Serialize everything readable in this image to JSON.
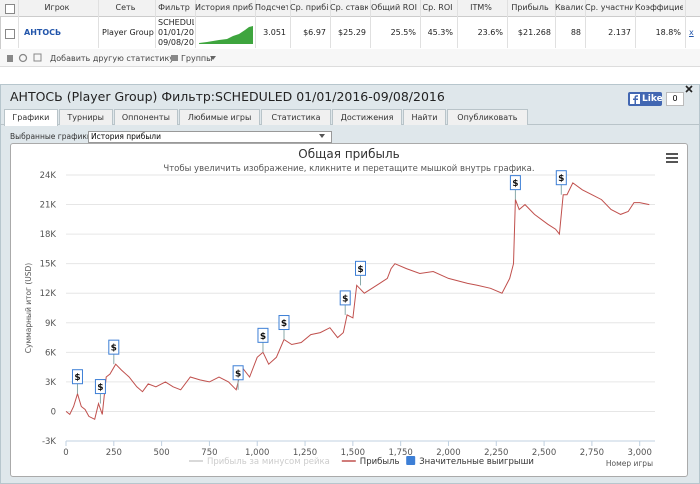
{
  "table": {
    "headers": [
      "Игрок",
      "Сеть",
      "Фильтр",
      "История прибы",
      "Подсчет",
      "Ср. прибі",
      "Ср. ставка",
      "Общий ROI",
      "Ср. ROI",
      "ITM%",
      "Прибыль",
      "Квалис",
      "Ср. участни",
      "Коэффицие"
    ],
    "row": {
      "player": "АНТОСЬ",
      "network": "Player Group",
      "filter": [
        "SCHEDUL",
        "01/01/20",
        "09/08/20"
      ],
      "stats": [
        "3.051",
        "$6.97",
        "$25.29",
        "25.5%",
        "45.3%",
        "23.6%",
        "$21.268",
        "88",
        "2.137",
        "18.8%"
      ],
      "remove": "x"
    },
    "actions": [
      "Добавить другую статистику",
      "Группы"
    ]
  },
  "panel": {
    "title": "АНТОСЬ (Player Group) Фильтр:SCHEDULED 01/01/2016-09/08/2016",
    "like": "Like",
    "like_count": "0",
    "tabs": [
      "Графики",
      "Турниры",
      "Оппоненты",
      "Любимые игры",
      "Статистика",
      "Достижения",
      "Найти",
      "Опубликовать"
    ],
    "selector_label": "Выбранные графики:",
    "selector_value": "История прибыли"
  },
  "chart_data": {
    "type": "line",
    "title": "Общая прибыль",
    "subtitle": "Чтобы увеличить изображение, кликните и перетащите мышкой внутрь графика.",
    "y_label": "Суммарный итог (USD)",
    "x_label": "Номер игры",
    "xlim": [
      0,
      3080
    ],
    "ylim": [
      -3000,
      24000
    ],
    "xticks": [
      0,
      250,
      500,
      750,
      {
        "value": 1000,
        "label": "1,000"
      },
      {
        "value": 1250,
        "label": "1,250"
      },
      {
        "value": 1500,
        "label": "1,500"
      },
      {
        "value": 1750,
        "label": "1,750"
      },
      {
        "value": 2000,
        "label": "2,000"
      },
      {
        "value": 2250,
        "label": "2,250"
      },
      {
        "value": 2500,
        "label": "2,500"
      },
      {
        "value": 2750,
        "label": "2,750"
      },
      {
        "value": 3000,
        "label": "3,000"
      }
    ],
    "yticks": [
      {
        "value": -3000,
        "label": "-3K"
      },
      0,
      {
        "value": 3000,
        "label": "3K"
      },
      {
        "value": 6000,
        "label": "6K"
      },
      {
        "value": 9000,
        "label": "9K"
      },
      {
        "value": 12000,
        "label": "12K"
      },
      {
        "value": 15000,
        "label": "15K"
      },
      {
        "value": 18000,
        "label": "18K"
      },
      {
        "value": 21000,
        "label": "21K"
      },
      {
        "value": 24000,
        "label": "24K"
      }
    ],
    "grid": true,
    "series": [
      {
        "name": "Прибыль за минусом рейка",
        "color": "#cccccc",
        "visible": false
      },
      {
        "name": "Прибыль",
        "color": "#c0504d",
        "visible": true,
        "x": [
          0,
          20,
          40,
          60,
          80,
          100,
          120,
          150,
          170,
          190,
          210,
          230,
          260,
          290,
          330,
          370,
          400,
          430,
          470,
          520,
          560,
          600,
          650,
          700,
          750,
          800,
          850,
          890,
          920,
          960,
          1000,
          1030,
          1060,
          1100,
          1140,
          1180,
          1230,
          1280,
          1330,
          1380,
          1420,
          1450,
          1470,
          1500,
          1520,
          1560,
          1600,
          1640,
          1680,
          1700,
          1720,
          1780,
          1850,
          1920,
          2000,
          2100,
          2150,
          2220,
          2280,
          2320,
          2340,
          2350,
          2370,
          2400,
          2450,
          2520,
          2560,
          2580,
          2600,
          2620,
          2650,
          2700,
          2750,
          2800,
          2850,
          2900,
          2940,
          2970,
          3000,
          3050
        ],
        "values": [
          0,
          -300,
          500,
          1800,
          500,
          200,
          -500,
          -800,
          800,
          -300,
          3500,
          3800,
          4800,
          4200,
          3500,
          2500,
          2000,
          2800,
          2500,
          3000,
          2500,
          2200,
          3500,
          3200,
          3000,
          3500,
          3000,
          2200,
          4500,
          3500,
          5500,
          6000,
          4800,
          5500,
          7300,
          6800,
          7000,
          7800,
          8000,
          8500,
          7500,
          8000,
          9800,
          9500,
          12800,
          12000,
          12500,
          13000,
          13500,
          14500,
          15000,
          14500,
          14000,
          14200,
          13500,
          13000,
          12800,
          12500,
          12000,
          13500,
          15000,
          21500,
          20500,
          21000,
          20000,
          19000,
          18500,
          18000,
          22000,
          22000,
          23200,
          22500,
          22000,
          21500,
          20500,
          20000,
          20300,
          21200,
          21200,
          21000
        ]
      }
    ],
    "flags": {
      "name": "Значительные выигрыши",
      "color": "#3d7fd6",
      "label": "$",
      "x": [
        60,
        180,
        250,
        900,
        1030,
        1140,
        1460,
        1540,
        2350,
        2590
      ],
      "values": [
        1800,
        800,
        4800,
        2200,
        6000,
        7300,
        9800,
        12800,
        21500,
        22000
      ]
    }
  }
}
